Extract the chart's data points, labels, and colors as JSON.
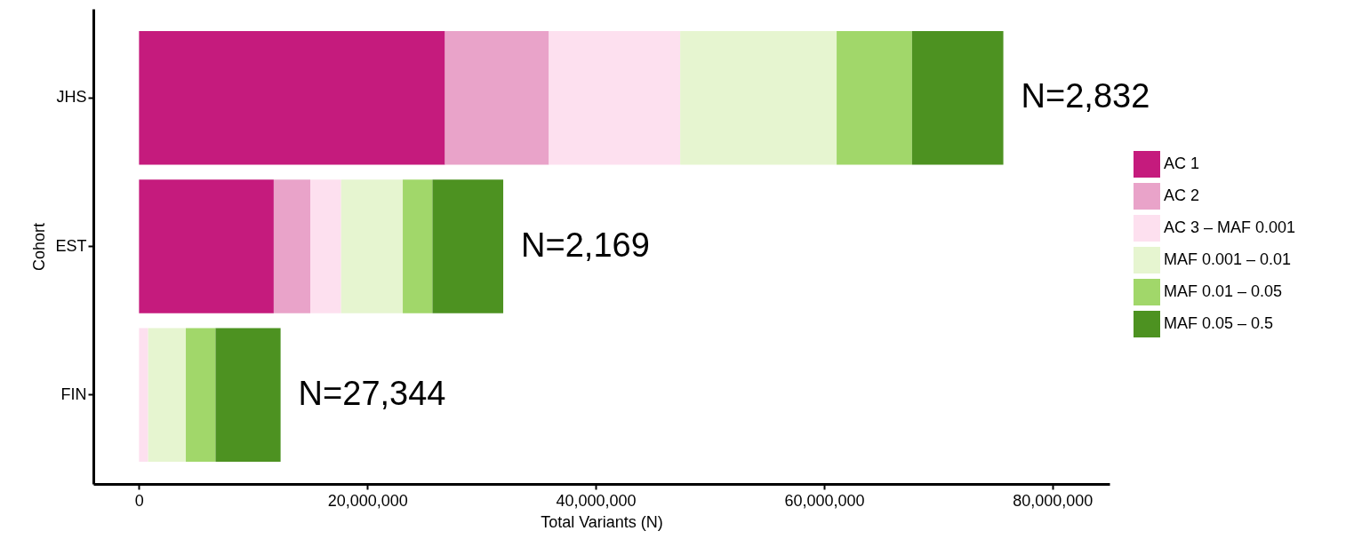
{
  "chart_data": {
    "type": "bar",
    "orientation": "horizontal",
    "stacked": true,
    "xlabel": "Total Variants (N)",
    "ylabel": "Cohort",
    "categories": [
      "JHS",
      "EST",
      "FIN"
    ],
    "series": [
      {
        "name": "AC 1",
        "color": "#c51b7d",
        "values": [
          26800000,
          11800000,
          0
        ]
      },
      {
        "name": "AC 2",
        "color": "#e9a3c9",
        "values": [
          9100000,
          3200000,
          0
        ]
      },
      {
        "name": "AC 3 – MAF 0.001",
        "color": "#fde0ef",
        "values": [
          11500000,
          2700000,
          800000
        ]
      },
      {
        "name": "MAF 0.001 – 0.01",
        "color": "#e6f5d0",
        "values": [
          13700000,
          5400000,
          3300000
        ]
      },
      {
        "name": "MAF 0.01 – 0.05",
        "color": "#a1d76a",
        "values": [
          6600000,
          2600000,
          2600000
        ]
      },
      {
        "name": "MAF 0.05 – 0.5",
        "color": "#4d9221",
        "values": [
          8000000,
          6200000,
          5700000
        ]
      }
    ],
    "xlim": [
      -4000000,
      85000000
    ],
    "xticks": [
      {
        "value": 0,
        "label": "0"
      },
      {
        "value": 20000000,
        "label": "20,000,000"
      },
      {
        "value": 40000000,
        "label": "40,000,000"
      },
      {
        "value": 60000000,
        "label": "60,000,000"
      },
      {
        "value": 80000000,
        "label": "80,000,000"
      }
    ],
    "annotations": [
      {
        "text": "N=2,832",
        "x": 75700000,
        "y": "JHS"
      },
      {
        "text": "N=2,169",
        "x": 31900000,
        "y": "EST"
      },
      {
        "text": "N=27,344",
        "x": 12400000,
        "y": "FIN"
      }
    ],
    "legend": "right",
    "grid": false
  }
}
